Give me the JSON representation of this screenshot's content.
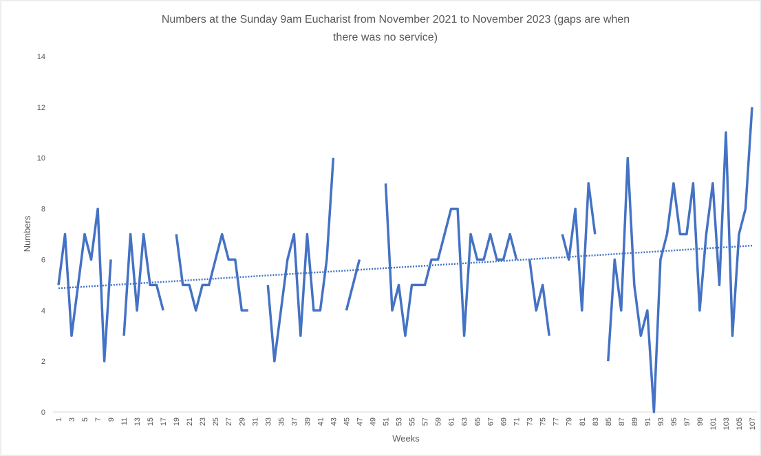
{
  "chart_data": {
    "type": "line",
    "title_lines": [
      "Numbers at the Sunday 9am Eucharist from November 2021 to November 2023 (gaps are when",
      "there was no service)"
    ],
    "x_label": "Weeks",
    "y_label": "Numbers",
    "categories": [
      1,
      null,
      3,
      null,
      5,
      null,
      7,
      null,
      9,
      null,
      11,
      null,
      13,
      null,
      15,
      null,
      17,
      null,
      19,
      null,
      21,
      null,
      23,
      null,
      25,
      null,
      27,
      null,
      29,
      null,
      31,
      null,
      33,
      null,
      35,
      null,
      37,
      null,
      39,
      null,
      41,
      null,
      43,
      null,
      45,
      null,
      47,
      null,
      49,
      null,
      51,
      null,
      53,
      null,
      55,
      null,
      57,
      null,
      59,
      null,
      61,
      null,
      63,
      null,
      65,
      null,
      67,
      null,
      69,
      null,
      71,
      null,
      73,
      null,
      75,
      null,
      77,
      null,
      79,
      null,
      81,
      null,
      83,
      null,
      85,
      null,
      87,
      null,
      89,
      null,
      91,
      null,
      93,
      null,
      95,
      null,
      97,
      null,
      99,
      null,
      101,
      null,
      103,
      null,
      105,
      null,
      107
    ],
    "values": [
      5,
      7,
      3,
      5,
      7,
      6,
      8,
      2,
      6,
      null,
      3,
      7,
      4,
      7,
      5,
      5,
      4,
      null,
      7,
      5,
      5,
      4,
      5,
      5,
      6,
      7,
      6,
      6,
      4,
      4,
      null,
      null,
      5,
      2,
      4,
      6,
      7,
      3,
      7,
      4,
      4,
      6,
      10,
      null,
      4,
      5,
      6,
      null,
      null,
      null,
      9,
      4,
      5,
      3,
      5,
      5,
      5,
      6,
      6,
      7,
      8,
      8,
      3,
      7,
      6,
      6,
      7,
      6,
      6,
      7,
      6,
      null,
      6,
      4,
      5,
      3,
      null,
      7,
      6,
      8,
      4,
      9,
      7,
      null,
      2,
      6,
      4,
      10,
      5,
      3,
      4,
      0,
      6,
      7,
      9,
      7,
      7,
      9,
      4,
      7,
      9,
      5,
      11,
      3,
      7,
      8,
      12
    ],
    "color": "#4472c4",
    "trendline": {
      "values": [
        4.87,
        6.55
      ],
      "color": "#4472c4"
    },
    "ylim": [
      0,
      14
    ],
    "yticks": [
      0,
      2,
      4,
      6,
      8,
      10,
      12,
      14
    ],
    "grid": false
  }
}
